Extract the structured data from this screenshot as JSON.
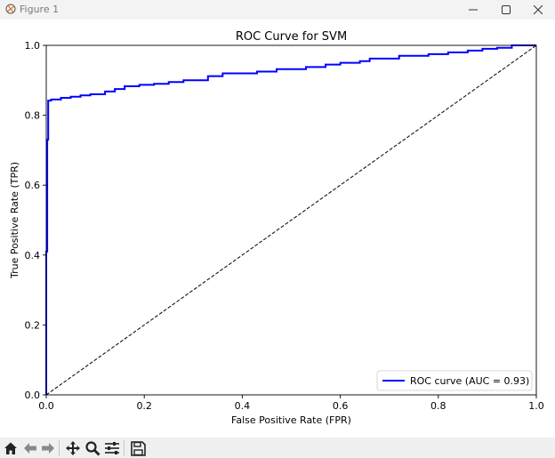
{
  "window": {
    "title": "Figure 1",
    "icons": {
      "app": "matplotlib-icon",
      "minimize": "minimize-icon",
      "maximize": "maximize-icon",
      "close": "close-icon"
    }
  },
  "toolbar": {
    "buttons": [
      "home-icon",
      "back-arrow-icon",
      "forward-arrow-icon",
      "pan-icon",
      "zoom-icon",
      "configure-subplots-icon",
      "save-icon"
    ]
  },
  "chart_data": {
    "type": "line",
    "title": "ROC Curve for SVM",
    "xlabel": "False Positive Rate (FPR)",
    "ylabel": "True Positive Rate (TPR)",
    "xlim": [
      0.0,
      1.0
    ],
    "ylim": [
      0.0,
      1.0
    ],
    "xticks": [
      "0.0",
      "0.2",
      "0.4",
      "0.6",
      "0.8",
      "1.0"
    ],
    "yticks": [
      "0.0",
      "0.2",
      "0.4",
      "0.6",
      "0.8",
      "1.0"
    ],
    "grid": false,
    "legend_position": "lower right",
    "series": [
      {
        "name": "ROC curve (AUC = 0.93)",
        "color": "#0000ff",
        "style": "solid",
        "x": [
          0.0,
          0.0,
          0.0,
          0.002,
          0.002,
          0.004,
          0.004,
          0.01,
          0.01,
          0.03,
          0.03,
          0.05,
          0.05,
          0.07,
          0.07,
          0.09,
          0.09,
          0.12,
          0.12,
          0.14,
          0.14,
          0.16,
          0.16,
          0.19,
          0.19,
          0.22,
          0.22,
          0.25,
          0.25,
          0.28,
          0.28,
          0.33,
          0.33,
          0.36,
          0.36,
          0.43,
          0.43,
          0.47,
          0.47,
          0.53,
          0.53,
          0.57,
          0.57,
          0.6,
          0.6,
          0.64,
          0.64,
          0.66,
          0.66,
          0.72,
          0.72,
          0.78,
          0.78,
          0.82,
          0.82,
          0.86,
          0.86,
          0.89,
          0.89,
          0.92,
          0.92,
          0.95,
          0.95,
          1.0
        ],
        "y": [
          0.0,
          0.3,
          0.41,
          0.41,
          0.73,
          0.73,
          0.842,
          0.842,
          0.845,
          0.845,
          0.85,
          0.85,
          0.853,
          0.853,
          0.857,
          0.857,
          0.86,
          0.86,
          0.868,
          0.868,
          0.875,
          0.875,
          0.883,
          0.883,
          0.887,
          0.887,
          0.89,
          0.89,
          0.895,
          0.895,
          0.9,
          0.9,
          0.912,
          0.912,
          0.92,
          0.92,
          0.925,
          0.925,
          0.932,
          0.932,
          0.938,
          0.938,
          0.945,
          0.945,
          0.95,
          0.95,
          0.955,
          0.955,
          0.962,
          0.962,
          0.97,
          0.97,
          0.975,
          0.975,
          0.98,
          0.98,
          0.985,
          0.985,
          0.99,
          0.99,
          0.993,
          0.993,
          1.0,
          1.0
        ]
      },
      {
        "color": "#000000",
        "style": "dashed",
        "x": [
          0.0,
          1.0
        ],
        "y": [
          0.0,
          1.0
        ]
      }
    ]
  }
}
